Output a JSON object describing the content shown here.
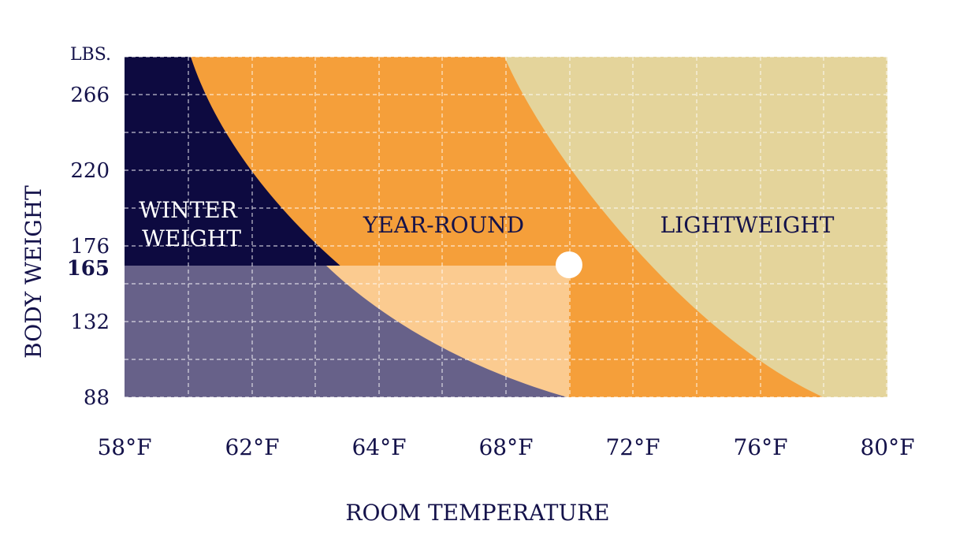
{
  "chart_data": {
    "type": "area",
    "xlabel": "ROOM TEMPERATURE",
    "ylabel": "BODY WEIGHT",
    "y_unit": "LBS.",
    "x_ticks": [
      "58°F",
      "62°F",
      "64°F",
      "68°F",
      "72°F",
      "76°F",
      "80°F"
    ],
    "y_ticks": [
      "266",
      "220",
      "176",
      "165",
      "132",
      "88"
    ],
    "highlight_y_tick": "165",
    "regions": [
      {
        "label": "WINTER\nWEIGHT",
        "color": "#0d0a40"
      },
      {
        "label": "YEAR-ROUND",
        "color": "#f59f3a"
      },
      {
        "label": "LIGHTWEIGHT",
        "color": "#e4d49b"
      }
    ],
    "marker": {
      "weight_lbs": 165,
      "temperature_tick_index": 3.8
    },
    "colors": {
      "winter": "#0d0a40",
      "winter_shaded": "#676189",
      "yearround": "#f59f3a",
      "yearround_shaded": "#fbcb90",
      "lightweight": "#e4d49b",
      "grid": "#ffffff",
      "text": "#14124a"
    },
    "grid": true
  }
}
